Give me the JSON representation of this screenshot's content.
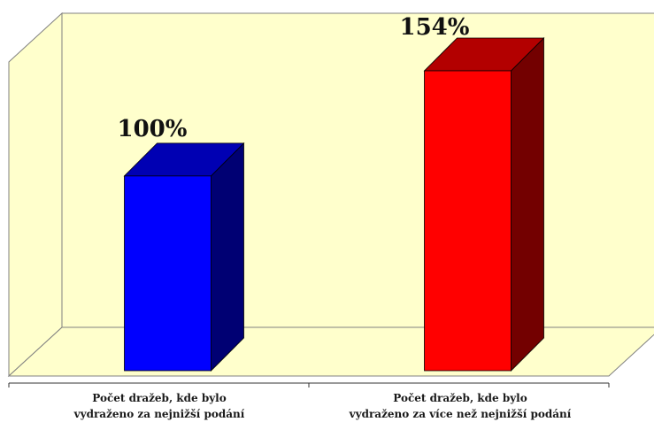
{
  "chart_data": {
    "type": "bar",
    "categories": [
      [
        "Počet dražeb, kde bylo",
        "vydraženo za nejnižší podání"
      ],
      [
        "Počet dražeb, kde bylo",
        "vydraženo za více než nejnižší podání"
      ]
    ],
    "values": [
      100,
      154
    ],
    "data_labels": [
      "100%",
      "154%"
    ],
    "ylim": [
      0,
      180
    ],
    "grid": false,
    "legend": "none"
  },
  "colors": {
    "wall": "#ffffcc",
    "floor": "#ffffcc",
    "bar_1": "#0000ff",
    "bar_2": "#ff0000"
  }
}
